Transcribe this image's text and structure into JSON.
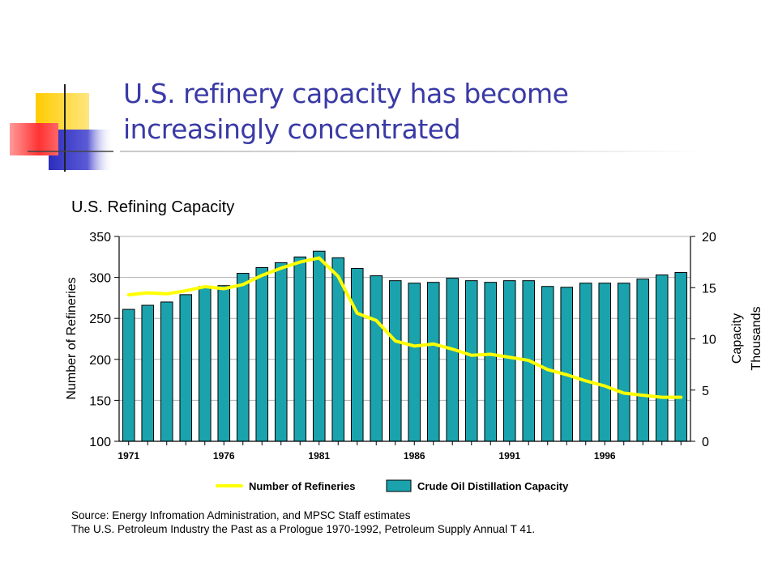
{
  "slide": {
    "title_line1": "U.S. refinery capacity has become",
    "title_line2": "increasingly concentrated"
  },
  "source": {
    "line1": "Source: Energy Infromation Administration, and MPSC Staff estimates",
    "line2": "The U.S. Petroleum Industry the Past as a Prologue 1970-1992, Petroleum Supply Annual T 41."
  },
  "colors": {
    "title": "#3a3aa6",
    "bar": "#1aa3ad",
    "line": "#ffff00",
    "deco_yellow": "#ffcc00",
    "deco_blue": "#3333cc",
    "deco_red": "#ff3333"
  },
  "chart_data": {
    "type": "bar",
    "title": "U.S. Refining Capacity",
    "ylabel": "Number of Refineries",
    "y2label_line1": "Capacity",
    "y2label_line2": "Thousands",
    "ylim": [
      100,
      350
    ],
    "y2lim": [
      0,
      20
    ],
    "yticks": [
      100,
      150,
      200,
      250,
      300,
      350
    ],
    "y2ticks": [
      0,
      5,
      10,
      15,
      20
    ],
    "categories": [
      1971,
      1972,
      1973,
      1974,
      1975,
      1976,
      1977,
      1978,
      1979,
      1980,
      1981,
      1982,
      1983,
      1984,
      1985,
      1986,
      1987,
      1988,
      1989,
      1990,
      1991,
      1992,
      1993,
      1994,
      1995,
      1996,
      1997,
      1998,
      1999,
      2000
    ],
    "xtick_labels": [
      "1971",
      "1976",
      "1981",
      "1986",
      "1991",
      "1996"
    ],
    "legend_position": "bottom",
    "series": [
      {
        "name": "Crude Oil Distillation Capacity",
        "type": "bar",
        "axis": "left",
        "values": [
          261,
          266,
          270,
          279,
          289,
          290,
          305,
          312,
          318,
          325,
          332,
          324,
          311,
          302,
          296,
          293,
          294,
          299,
          296,
          294,
          296,
          296,
          289,
          288,
          293,
          293,
          293,
          298,
          303,
          306
        ]
      },
      {
        "name": "Number of Refineries",
        "type": "line",
        "axis": "right",
        "values": [
          14.3,
          14.5,
          14.4,
          14.7,
          15.1,
          14.9,
          15.3,
          16.2,
          16.9,
          17.5,
          17.9,
          16.1,
          12.5,
          11.8,
          9.8,
          9.3,
          9.5,
          9.0,
          8.4,
          8.5,
          8.2,
          7.9,
          7.0,
          6.5,
          5.9,
          5.4,
          4.7,
          4.5,
          4.3,
          4.3
        ]
      }
    ]
  }
}
